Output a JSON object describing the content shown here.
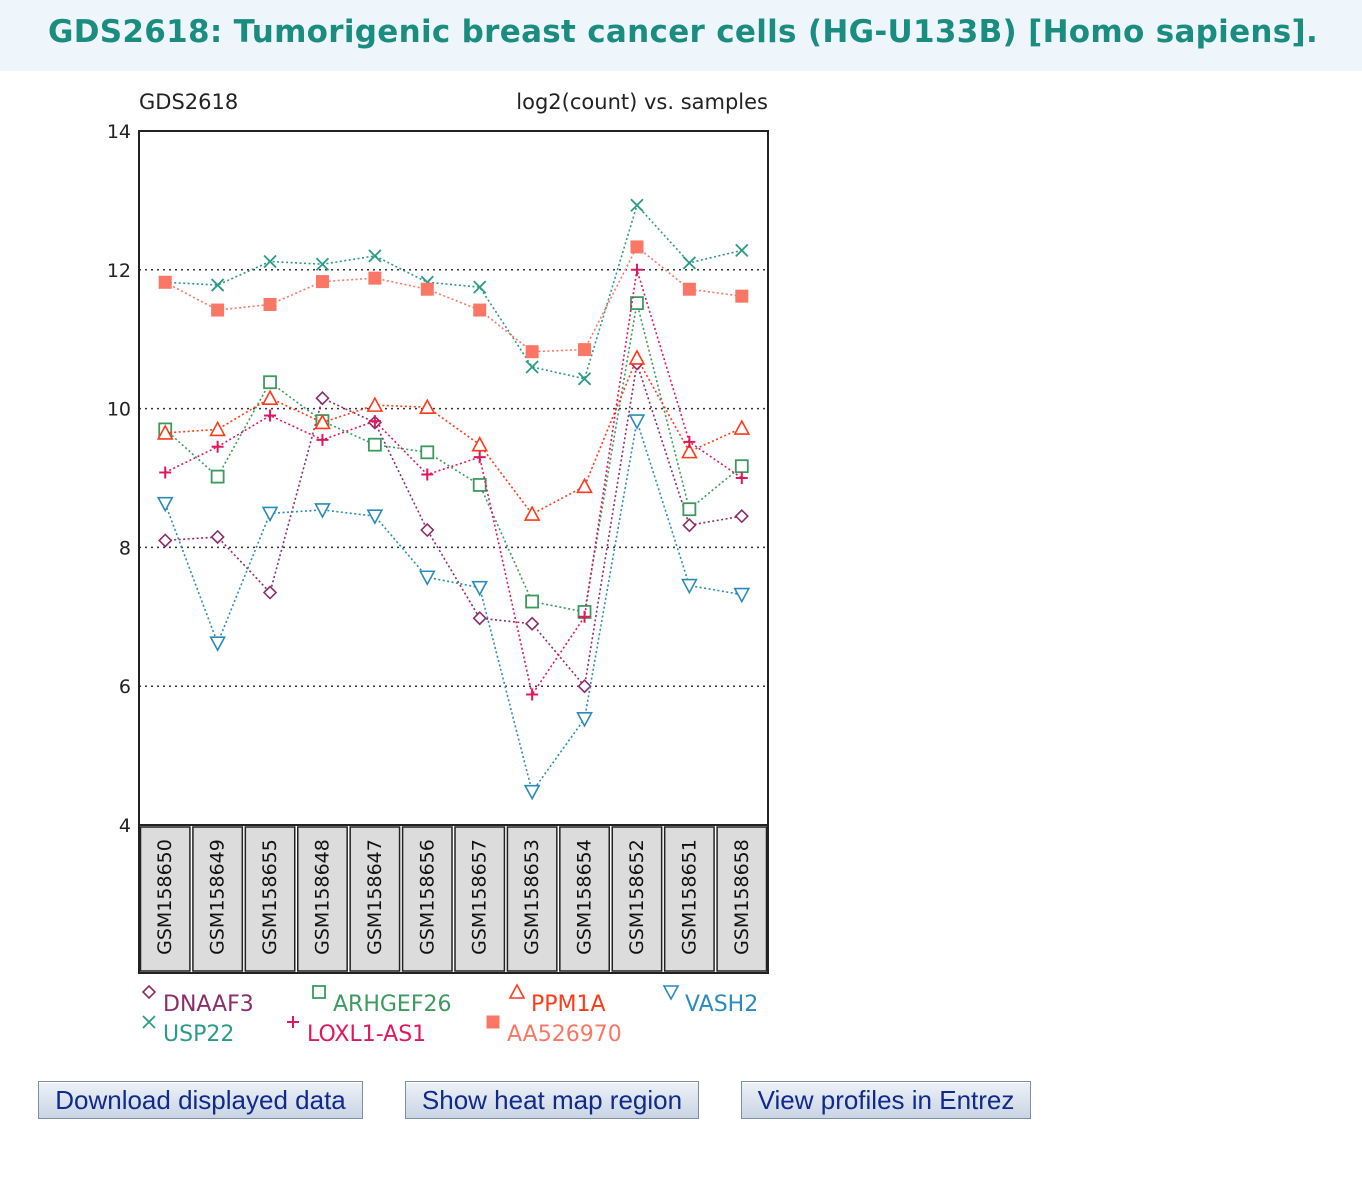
{
  "page": {
    "title": "GDS2618: Tumorigenic breast cancer cells (HG-U133B) [Homo sapiens]."
  },
  "buttons": {
    "download": "Download displayed data",
    "heatmap": "Show heat map region",
    "entrez": "View profiles in Entrez"
  },
  "chart_data": {
    "type": "line",
    "title": "GDS2618",
    "subtitle": "log2(count) vs. samples",
    "xlabel": "",
    "ylabel": "",
    "ylim": [
      4,
      14
    ],
    "yticks": [
      4,
      6,
      8,
      10,
      12,
      14
    ],
    "grid": "dotted horizontal lines at 6, 8, 10, 12",
    "legend_position": "bottom",
    "categories": [
      "GSM158650",
      "GSM158649",
      "GSM158655",
      "GSM158648",
      "GSM158647",
      "GSM158656",
      "GSM158657",
      "GSM158653",
      "GSM158654",
      "GSM158652",
      "GSM158651",
      "GSM158658"
    ],
    "series": [
      {
        "name": "DNAAF3",
        "color": "#8b2d6b",
        "marker": "diamond",
        "values": [
          8.1,
          8.15,
          7.35,
          10.15,
          9.8,
          8.25,
          6.98,
          6.9,
          6.0,
          10.65,
          8.32,
          8.45
        ]
      },
      {
        "name": "ARHGEF26",
        "color": "#3d9a5e",
        "marker": "square",
        "values": [
          9.7,
          9.02,
          10.38,
          9.82,
          9.48,
          9.37,
          8.9,
          7.22,
          7.07,
          11.52,
          8.55,
          9.17
        ]
      },
      {
        "name": "PPM1A",
        "color": "#ff3a1a",
        "marker": "triangle-up",
        "values": [
          9.65,
          9.7,
          10.15,
          9.8,
          10.05,
          10.02,
          9.48,
          8.48,
          8.88,
          10.73,
          9.38,
          9.72
        ]
      },
      {
        "name": "VASH2",
        "color": "#2a8cb8",
        "marker": "triangle-down",
        "values": [
          8.63,
          6.62,
          8.49,
          8.54,
          8.45,
          7.57,
          7.42,
          4.48,
          5.53,
          9.82,
          7.45,
          7.32
        ]
      },
      {
        "name": "USP22",
        "color": "#2b9a86",
        "marker": "x",
        "values": [
          11.82,
          11.78,
          12.12,
          12.08,
          12.2,
          11.82,
          11.75,
          10.6,
          10.43,
          12.93,
          12.1,
          12.28
        ]
      },
      {
        "name": "LOXL1-AS1",
        "color": "#e0185a",
        "marker": "plus",
        "values": [
          9.08,
          9.45,
          9.9,
          9.55,
          9.82,
          9.05,
          9.3,
          5.88,
          7.0,
          12.0,
          9.52,
          9.0
        ]
      },
      {
        "name": "AA526970",
        "color": "#fa7766",
        "marker": "filled-square",
        "values": [
          11.82,
          11.42,
          11.5,
          11.83,
          11.88,
          11.72,
          11.42,
          10.82,
          10.85,
          12.33,
          11.72,
          11.62
        ]
      }
    ]
  }
}
